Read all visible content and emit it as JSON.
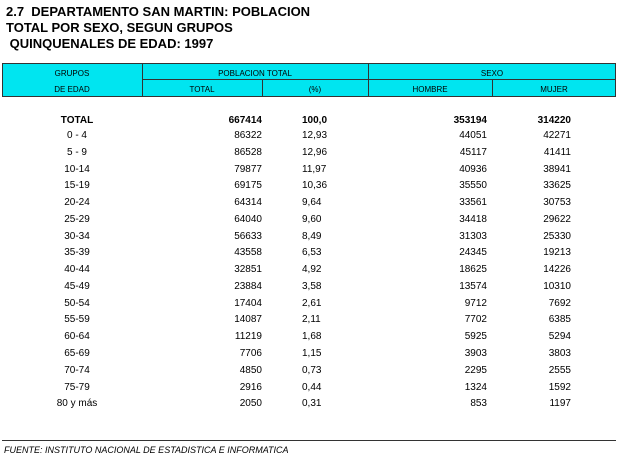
{
  "header": {
    "title_lines": [
      "2.7  DEPARTAMENTO SAN MARTIN: POBLACION",
      "TOTAL POR SEXO, SEGUN GRUPOS",
      " QUINQUENALES DE EDAD: 1997"
    ]
  },
  "table": {
    "columns": {
      "group_top": "GRUPOS",
      "group_bottom": "DE EDAD",
      "poblacion_total": "POBLACION TOTAL",
      "total": "TOTAL",
      "pct": "(%)",
      "sexo": "SEXO",
      "hombre": "HOMBRE",
      "mujer": "MUJER"
    },
    "rows": [
      [
        "TOTAL",
        667414,
        "100,0",
        353194,
        314220
      ],
      [
        "0 - 4",
        86322,
        "12,93",
        44051,
        42271
      ],
      [
        "5 - 9",
        86528,
        "12,96",
        45117,
        41411
      ],
      [
        "10-14",
        79877,
        "11,97",
        40936,
        38941
      ],
      [
        "15-19",
        69175,
        "10,36",
        35550,
        33625
      ],
      [
        "20-24",
        64314,
        "9,64",
        33561,
        30753
      ],
      [
        "25-29",
        64040,
        "9,60",
        34418,
        29622
      ],
      [
        "30-34",
        56633,
        "8,49",
        31303,
        25330
      ],
      [
        "35-39",
        43558,
        "6,53",
        24345,
        19213
      ],
      [
        "40-44",
        32851,
        "4,92",
        18625,
        14226
      ],
      [
        "45-49",
        23884,
        "3,58",
        13574,
        10310
      ],
      [
        "50-54",
        17404,
        "2,61",
        9712,
        7692
      ],
      [
        "55-59",
        14087,
        "2,11",
        7702,
        6385
      ],
      [
        "60-64",
        11219,
        "1,68",
        5925,
        5294
      ],
      [
        "65-69",
        7706,
        "1,15",
        3903,
        3803
      ],
      [
        "70-74",
        4850,
        "0,73",
        2295,
        2555
      ],
      [
        "75-79",
        2916,
        "0,44",
        1324,
        1592
      ],
      [
        "80 y más",
        2050,
        "0,31",
        853,
        1197
      ]
    ]
  },
  "footer": {
    "source": "FUENTE: INSTITUTO NACIONAL DE ESTADISTICA E INFORMATICA"
  }
}
